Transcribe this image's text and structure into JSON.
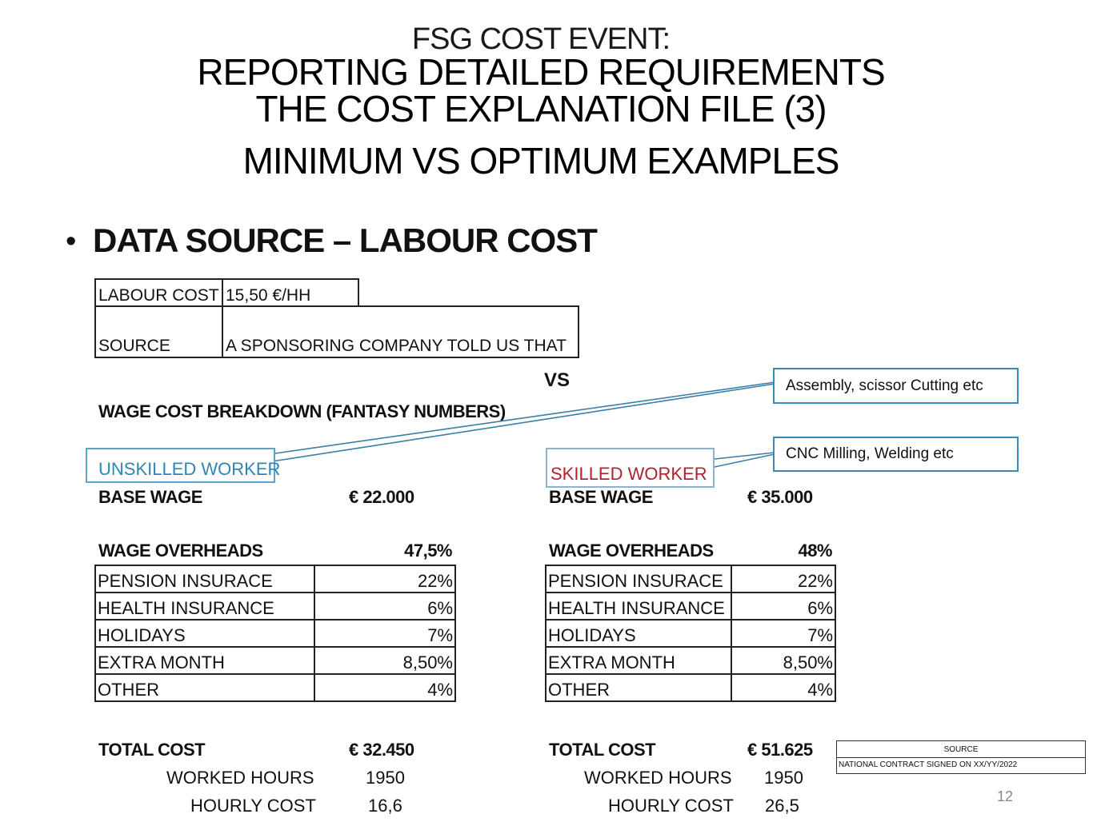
{
  "title": {
    "line1": "FSG COST EVENT:",
    "line2": "REPORTING DETAILED REQUIREMENTS",
    "line3": "THE COST EXPLANATION FILE (3)",
    "line4": "MINIMUM VS OPTIMUM EXAMPLES"
  },
  "bullet": "•",
  "heading": "DATA SOURCE – LABOUR COST",
  "labour_table": {
    "label": "LABOUR COST",
    "value": "15,50 €/HH",
    "source_label": "SOURCE",
    "source_value": "A SPONSORING COMPANY TOLD US THAT"
  },
  "vs": "VS",
  "wage_title": "WAGE COST BREAKDOWN (FANTASY NUMBERS)",
  "callouts": {
    "unskilled": "Assembly, scissor Cutting etc",
    "skilled": "CNC Milling, Welding etc"
  },
  "unskilled": {
    "name": "UNSKILLED WORKER",
    "base_wage_label": "BASE WAGE",
    "base_wage": "€ 22.000",
    "overheads_label": "WAGE OVERHEADS",
    "overheads_total": "47,5%",
    "rows": [
      {
        "label": "PENSION INSURACE",
        "value": "22%"
      },
      {
        "label": "HEALTH INSURANCE",
        "value": "6%"
      },
      {
        "label": "HOLIDAYS",
        "value": "7%"
      },
      {
        "label": "EXTRA MONTH",
        "value": "8,50%"
      },
      {
        "label": "OTHER",
        "value": "4%"
      }
    ],
    "total_label": "TOTAL COST",
    "total": "€ 32.450",
    "hours_label": "WORKED HOURS",
    "hours": "1950",
    "hourly_label": "HOURLY COST",
    "hourly": "16,6"
  },
  "skilled": {
    "name": "SKILLED WORKER",
    "base_wage_label": "BASE WAGE",
    "base_wage": "€ 35.000",
    "overheads_label": "WAGE OVERHEADS",
    "overheads_total": "48%",
    "rows": [
      {
        "label": "PENSION INSURACE",
        "value": "22%"
      },
      {
        "label": "HEALTH INSURANCE",
        "value": "6%"
      },
      {
        "label": "HOLIDAYS",
        "value": "7%"
      },
      {
        "label": "EXTRA MONTH",
        "value": "8,50%"
      },
      {
        "label": "OTHER",
        "value": "4%"
      }
    ],
    "total_label": "TOTAL COST",
    "total": "€ 51.625",
    "hours_label": "WORKED HOURS",
    "hours": "1950",
    "hourly_label": "HOURLY COST",
    "hourly": "26,5"
  },
  "source_note": {
    "label": "SOURCE",
    "value": "NATIONAL CONTRACT SIGNED ON XX/YY/2022"
  },
  "page_number": "12",
  "colors": {
    "unskilled": "#2f86b2",
    "skilled": "#b0222c",
    "callout_border": "#3a8ab8"
  }
}
